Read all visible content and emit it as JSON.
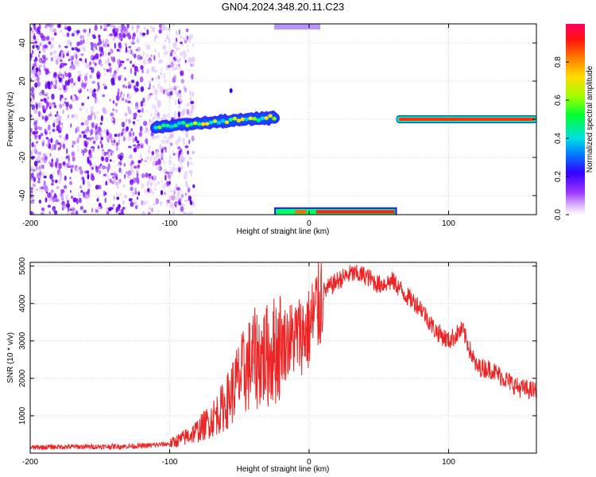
{
  "title": "GN04.2024.348.20.11.C23",
  "chart_data": [
    {
      "type": "heatmap",
      "xlabel": "Height of straight line (km)",
      "ylabel": "Frequency (Hz)",
      "xlim": [
        -200,
        163
      ],
      "ylim": [
        -50,
        50
      ],
      "xticks": [
        -200,
        -100,
        0,
        100
      ],
      "yticks": [
        -40,
        -20,
        0,
        20,
        40
      ],
      "colorbar": {
        "label": "Normalized spectral amplitude",
        "range": [
          0.0,
          1.0
        ],
        "ticks": [
          "0.0",
          "0.2",
          "0.4",
          "0.6",
          "0.8"
        ],
        "colors": [
          "#ffffff",
          "#d9b3ff",
          "#b266ff",
          "#7a00ff",
          "#0000ff",
          "#00c8ff",
          "#00ff66",
          "#a0ff00",
          "#ffdd00",
          "#ff7f00",
          "#ff0000",
          "#ff0066"
        ]
      },
      "features": [
        {
          "name": "noise field",
          "x": [
            -200,
            -85
          ],
          "y": [
            -50,
            50
          ],
          "amplitude": 0.25
        },
        {
          "name": "rising tone",
          "x": [
            -110,
            -25
          ],
          "y_start": -4,
          "y_end": 1,
          "amplitude": 0.55
        },
        {
          "name": "aliased band top",
          "x": [
            -25,
            8
          ],
          "y": [
            47,
            50
          ],
          "amplitude": 0.3
        },
        {
          "name": "aliased band bottom",
          "x": [
            -25,
            63
          ],
          "y": [
            -50,
            -47
          ],
          "amplitude": 0.95
        },
        {
          "name": "carrier line",
          "x": [
            63,
            163
          ],
          "y": [
            0,
            0
          ],
          "amplitude": 1.0
        }
      ],
      "grid": true
    },
    {
      "type": "line",
      "xlabel": "Height of straight line (km)",
      "ylabel": "SNR (10 * v/v)",
      "xlim": [
        -200,
        163
      ],
      "ylim": [
        0,
        5100
      ],
      "xticks": [
        -200,
        -100,
        0,
        100
      ],
      "yticks": [
        1000,
        2000,
        3000,
        4000,
        5000
      ],
      "color": "#ee2222",
      "grid": true,
      "series": [
        {
          "x": [
            -200,
            -180,
            -160,
            -140,
            -120,
            -100,
            -90,
            -80,
            -70,
            -60,
            -50,
            -40,
            -30,
            -20,
            -10,
            0,
            10,
            20,
            30,
            40,
            50,
            60,
            70,
            80,
            90,
            100,
            110,
            120,
            130,
            140,
            150,
            163
          ],
          "values": [
            150,
            170,
            170,
            180,
            190,
            250,
            400,
            600,
            900,
            1300,
            2000,
            2500,
            2600,
            2900,
            3100,
            3300,
            4300,
            4600,
            4800,
            4750,
            4500,
            4600,
            4200,
            3900,
            3300,
            3000,
            3300,
            2300,
            2250,
            2000,
            1750,
            1650
          ]
        }
      ]
    }
  ]
}
